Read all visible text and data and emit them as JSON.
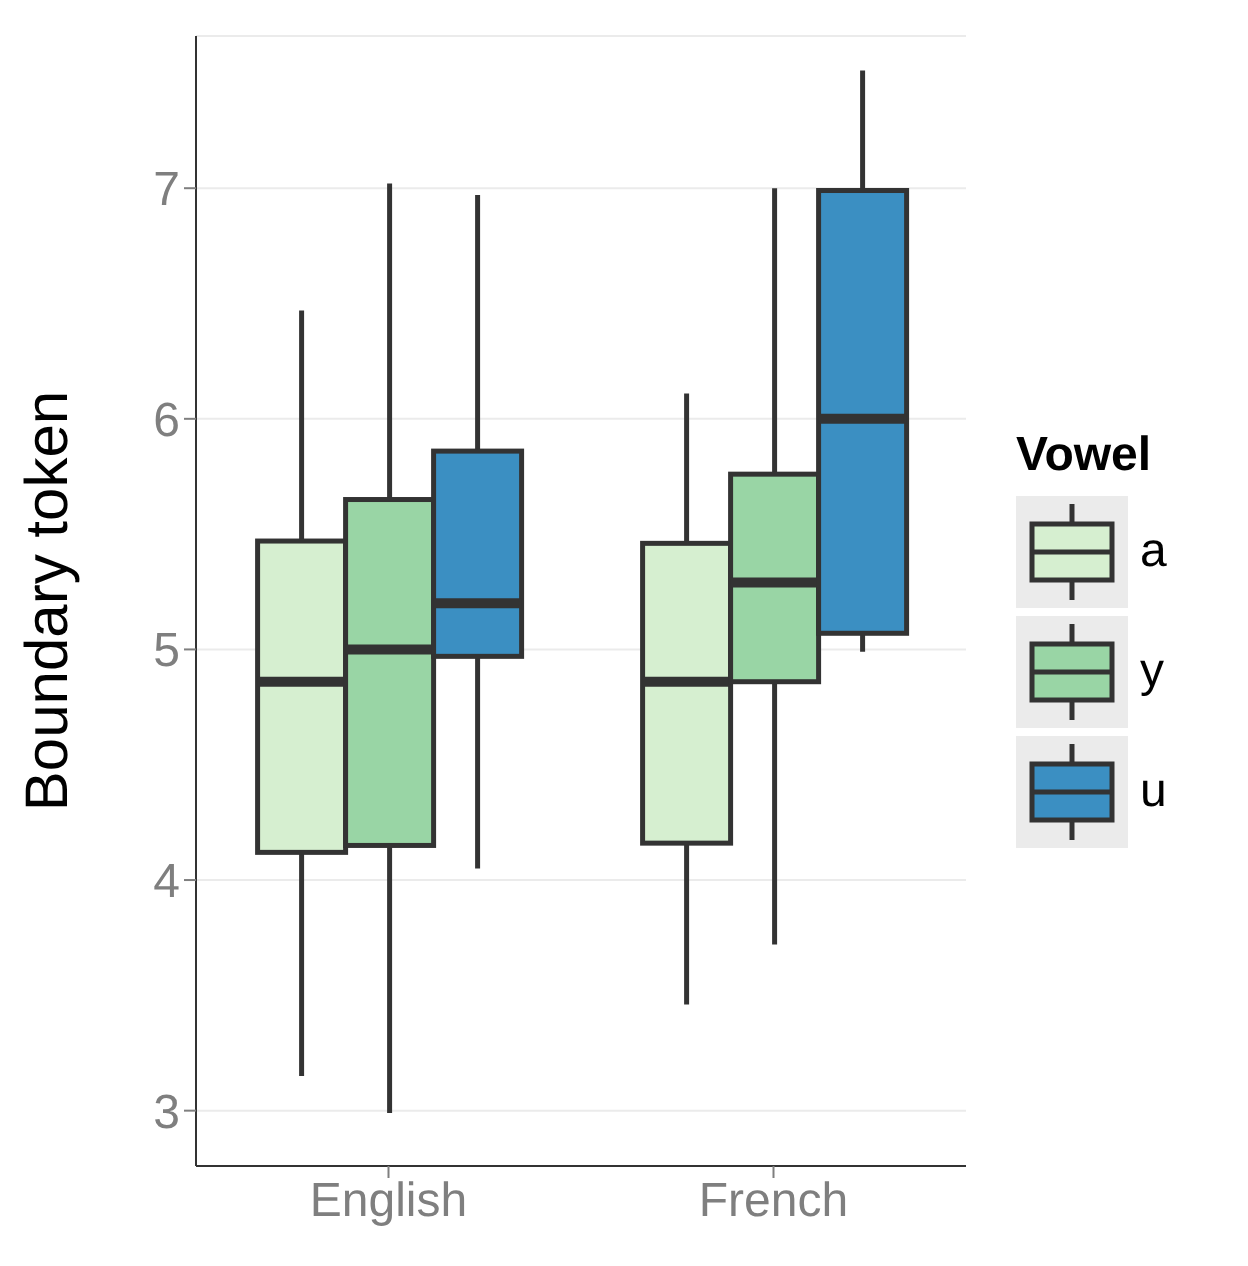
{
  "chart_data": {
    "type": "box",
    "ylabel": "Boundary token",
    "legend_title": "Vowel",
    "legend": "right",
    "grid": true,
    "categories": [
      "English",
      "French"
    ],
    "ylim": [
      2.76,
      7.66
    ],
    "yticks": [
      3,
      4,
      5,
      6,
      7
    ],
    "series": [
      {
        "name": "a",
        "color": "#d6efd0",
        "boxes": [
          {
            "low": 3.15,
            "q1": 4.12,
            "median": 4.86,
            "q3": 5.47,
            "high": 6.47
          },
          {
            "low": 3.46,
            "q1": 4.16,
            "median": 4.86,
            "q3": 5.46,
            "high": 6.11
          }
        ]
      },
      {
        "name": "y",
        "color": "#99d5a5",
        "boxes": [
          {
            "low": 2.99,
            "q1": 4.15,
            "median": 5.0,
            "q3": 5.65,
            "high": 7.02
          },
          {
            "low": 3.72,
            "q1": 4.86,
            "median": 5.29,
            "q3": 5.76,
            "high": 7.0
          }
        ]
      },
      {
        "name": "u",
        "color": "#3b8fc2",
        "boxes": [
          {
            "low": 4.05,
            "q1": 4.97,
            "median": 5.2,
            "q3": 5.86,
            "high": 6.97
          },
          {
            "low": 4.99,
            "q1": 5.07,
            "median": 6.0,
            "q3": 6.99,
            "high": 7.51
          }
        ]
      }
    ]
  }
}
